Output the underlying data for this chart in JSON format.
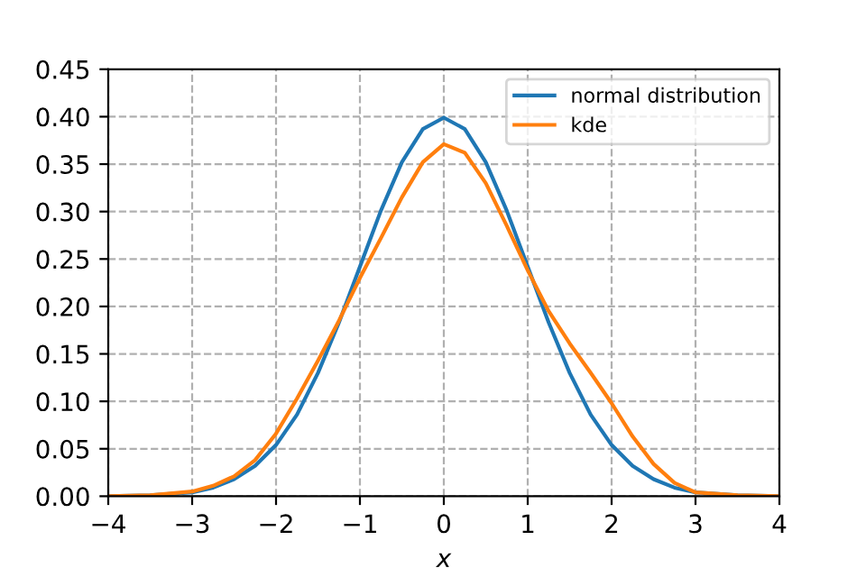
{
  "chart_data": {
    "type": "line",
    "xlabel": "x",
    "xlim": [
      -4,
      4
    ],
    "ylim": [
      0,
      0.45
    ],
    "xticks": [
      {
        "value": -4,
        "label": "−4"
      },
      {
        "value": -3,
        "label": "−3"
      },
      {
        "value": -2,
        "label": "−2"
      },
      {
        "value": -1,
        "label": "−1"
      },
      0,
      1,
      2,
      3,
      4
    ],
    "yticks": [
      {
        "value": 0,
        "label": "0.00"
      },
      {
        "value": 0.05,
        "label": "0.05"
      },
      {
        "value": 0.1,
        "label": "0.10"
      },
      {
        "value": 0.15,
        "label": "0.15"
      },
      {
        "value": 0.2,
        "label": "0.20"
      },
      {
        "value": 0.25,
        "label": "0.25"
      },
      {
        "value": 0.3,
        "label": "0.30"
      },
      {
        "value": 0.35,
        "label": "0.35"
      },
      {
        "value": 0.4,
        "label": "0.40"
      },
      {
        "value": 0.45,
        "label": "0.45"
      }
    ],
    "grid": true,
    "legend": "top right",
    "line_style": "solid",
    "marker": "none",
    "x": [
      -4,
      -3.5,
      -3,
      -2.75,
      -2.5,
      -2.25,
      -2,
      -1.75,
      -1.5,
      -1.25,
      -1,
      -0.75,
      -0.5,
      -0.25,
      0,
      0.25,
      0.5,
      0.75,
      1,
      1.25,
      1.5,
      1.75,
      2,
      2.25,
      2.5,
      2.75,
      3,
      3.5,
      4
    ],
    "series": [
      {
        "name": "normal distribution",
        "color": "#1f77b4",
        "values": [
          0.0,
          0.001,
          0.004,
          0.009,
          0.018,
          0.032,
          0.054,
          0.086,
          0.13,
          0.183,
          0.242,
          0.301,
          0.352,
          0.387,
          0.399,
          0.387,
          0.352,
          0.301,
          0.242,
          0.183,
          0.13,
          0.086,
          0.054,
          0.032,
          0.018,
          0.009,
          0.004,
          0.001,
          0.0
        ]
      },
      {
        "name": "kde",
        "color": "#ff7f0e",
        "values": [
          0.0,
          0.001,
          0.005,
          0.011,
          0.021,
          0.038,
          0.066,
          0.103,
          0.143,
          0.185,
          0.23,
          0.272,
          0.315,
          0.352,
          0.371,
          0.362,
          0.33,
          0.285,
          0.238,
          0.195,
          0.161,
          0.13,
          0.098,
          0.063,
          0.034,
          0.014,
          0.004,
          0.001,
          0.0
        ]
      }
    ]
  }
}
